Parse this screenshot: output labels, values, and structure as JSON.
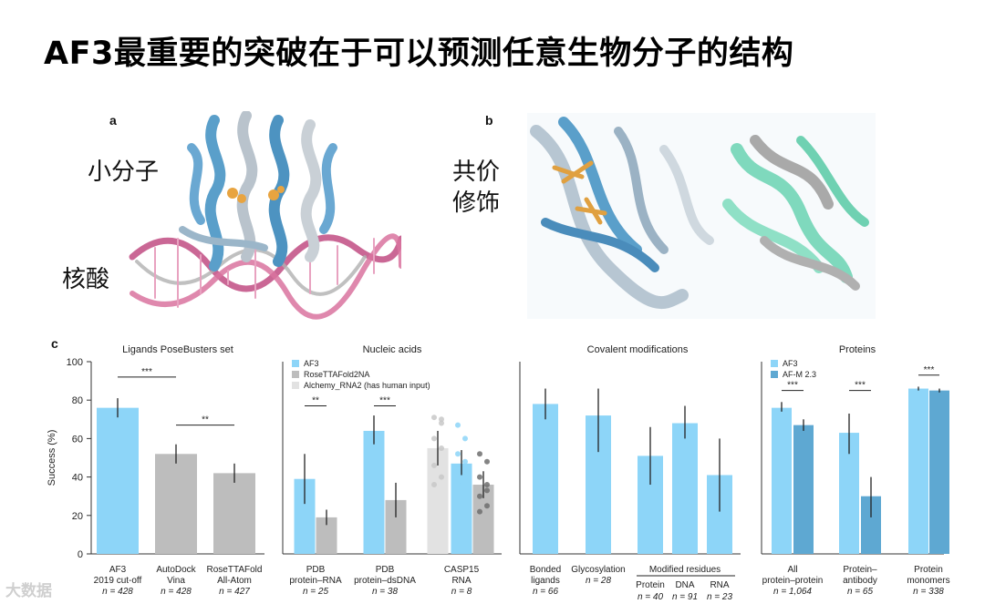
{
  "slide": {
    "title": "AF3最重要的突破在于可以预测任意生物分子的结构",
    "panel_a": {
      "letter": "a",
      "labels": [
        "小分子",
        "核酸"
      ]
    },
    "panel_b": {
      "letter": "b",
      "labels": [
        "共价",
        "修饰"
      ]
    },
    "panel_c": {
      "letter": "c"
    },
    "watermark": "大数据"
  },
  "colors": {
    "af3": "#8dd5f8",
    "afm": "#5ea8d2",
    "gray": "#bdbdbd",
    "lightgray": "#e2e2e2",
    "dark": "#222222"
  },
  "chart_data": [
    {
      "type": "bar",
      "title": "Ligands PoseBusters set",
      "ylabel": "Success (%)",
      "ylim": [
        0,
        100
      ],
      "yticks": [
        0,
        20,
        40,
        60,
        80,
        100
      ],
      "categories": [
        {
          "label": [
            "AF3",
            "2019 cut-off"
          ],
          "n": "n = 428"
        },
        {
          "label": [
            "AutoDock",
            "Vina"
          ],
          "n": "n = 428"
        },
        {
          "label": [
            "RoseTTAFold",
            "All-Atom"
          ],
          "n": "n = 427"
        }
      ],
      "bars": [
        {
          "value": 76,
          "err": [
            71,
            81
          ],
          "color": "af3"
        },
        {
          "value": 52,
          "err": [
            47,
            57
          ],
          "color": "gray"
        },
        {
          "value": 42,
          "err": [
            37,
            47
          ],
          "color": "gray"
        }
      ],
      "significance": [
        {
          "label": "***",
          "level": 92
        },
        {
          "label": "**",
          "level": 67
        }
      ]
    },
    {
      "type": "bar",
      "title": "Nucleic acids",
      "legend": [
        {
          "name": "AF3",
          "color": "af3"
        },
        {
          "name": "RoseTTAFold2NA",
          "color": "gray"
        },
        {
          "name": "Alchemy_RNA2 (has human input)",
          "color": "lightgray"
        }
      ],
      "categories": [
        {
          "label": [
            "PDB",
            "protein–RNA"
          ],
          "n": "n = 25"
        },
        {
          "label": [
            "PDB",
            "protein–dsDNA"
          ],
          "n": "n = 38"
        },
        {
          "label": [
            "CASP15",
            "RNA"
          ],
          "n": "n = 8"
        }
      ],
      "bars": [
        {
          "value": 39,
          "err": [
            26,
            52
          ],
          "color": "af3"
        },
        {
          "value": 19,
          "err": [
            15,
            23
          ],
          "color": "gray"
        },
        {
          "value": 64,
          "err": [
            57,
            72
          ],
          "color": "af3"
        },
        {
          "value": 28,
          "err": [
            19,
            37
          ],
          "color": "gray"
        },
        {
          "value": 55,
          "err": [
            46,
            64
          ],
          "color": "lightgray"
        },
        {
          "value": 47,
          "err": [
            41,
            54
          ],
          "color": "af3"
        },
        {
          "value": 36,
          "err": [
            29,
            43
          ],
          "color": "gray"
        }
      ],
      "significance": [
        {
          "label": "**",
          "level": 77
        },
        {
          "label": "***",
          "level": 77
        }
      ]
    },
    {
      "type": "bar",
      "title": "Covalent modifications",
      "categories": [
        {
          "label": [
            "Bonded",
            "ligands"
          ],
          "n": "n = 66"
        },
        {
          "label": [
            "Glycosylation",
            ""
          ],
          "n": "n = 28"
        },
        {
          "label": [
            "Protein",
            ""
          ],
          "n": "n = 40"
        },
        {
          "label": [
            "DNA",
            ""
          ],
          "n": "n = 91"
        },
        {
          "label": [
            "RNA",
            ""
          ],
          "n": "n = 23"
        }
      ],
      "group_label": "Modified residues",
      "bars": [
        {
          "value": 78,
          "err": [
            70,
            86
          ],
          "color": "af3"
        },
        {
          "value": 72,
          "err": [
            53,
            86
          ],
          "color": "af3"
        },
        {
          "value": 51,
          "err": [
            36,
            66
          ],
          "color": "af3"
        },
        {
          "value": 68,
          "err": [
            60,
            77
          ],
          "color": "af3"
        },
        {
          "value": 41,
          "err": [
            22,
            60
          ],
          "color": "af3"
        }
      ]
    },
    {
      "type": "bar",
      "title": "Proteins",
      "legend": [
        {
          "name": "AF3",
          "color": "af3"
        },
        {
          "name": "AF-M 2.3",
          "color": "afm"
        }
      ],
      "categories": [
        {
          "label": [
            "All",
            "protein–protein"
          ],
          "n": "n = 1,064"
        },
        {
          "label": [
            "Protein–",
            "antibody"
          ],
          "n": "n = 65"
        },
        {
          "label": [
            "Protein",
            "monomers"
          ],
          "n": "n = 338"
        }
      ],
      "bars": [
        {
          "value": 76,
          "err": [
            74,
            79
          ],
          "color": "af3"
        },
        {
          "value": 67,
          "err": [
            64,
            70
          ],
          "color": "afm"
        },
        {
          "value": 63,
          "err": [
            52,
            73
          ],
          "color": "af3"
        },
        {
          "value": 30,
          "err": [
            19,
            40
          ],
          "color": "afm"
        },
        {
          "value": 86,
          "err": [
            85,
            87
          ],
          "color": "af3"
        },
        {
          "value": 85,
          "err": [
            84,
            86
          ],
          "color": "afm"
        }
      ],
      "significance": [
        {
          "label": "***",
          "level": 85
        },
        {
          "label": "***",
          "level": 85
        },
        {
          "label": "***",
          "level": 93
        }
      ]
    }
  ]
}
